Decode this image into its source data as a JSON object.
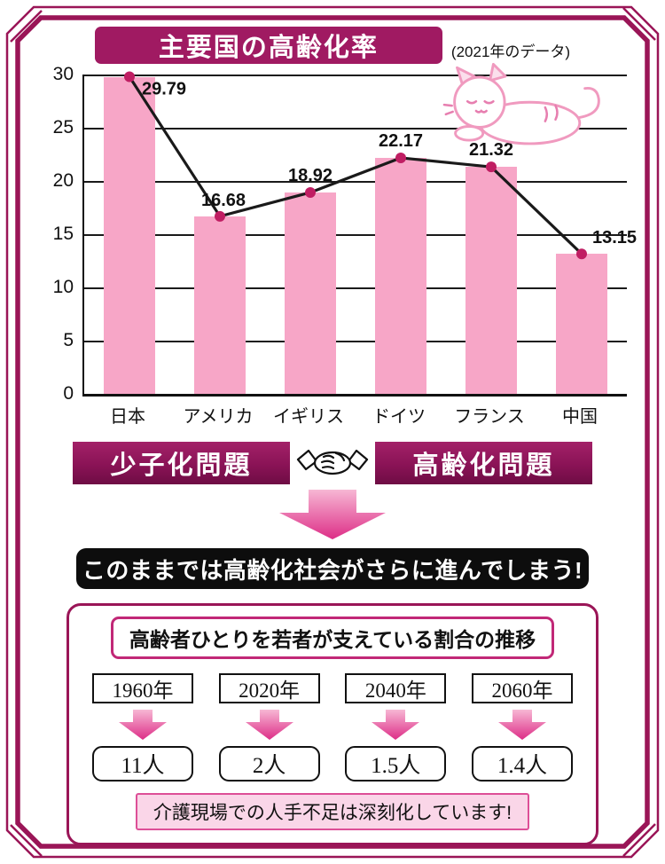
{
  "header": {
    "title": "主要国の高齢化率",
    "note": "(2021年のデータ)"
  },
  "chart_data": {
    "type": "bar",
    "overlay": "line",
    "title": "主要国の高齢化率",
    "subtitle": "(2021年のデータ)",
    "categories": [
      "日本",
      "アメリカ",
      "イギリス",
      "ドイツ",
      "フランス",
      "中国"
    ],
    "values": [
      29.79,
      16.68,
      18.92,
      22.17,
      21.32,
      13.15
    ],
    "ylim": [
      0,
      30
    ],
    "yticks": [
      0,
      5,
      10,
      15,
      20,
      25,
      30
    ],
    "grid": true,
    "bar_color": "#F7A6C7",
    "line_color": "#1A1A1A",
    "dot_color": "#C01E63"
  },
  "problems": {
    "left": "少子化問題",
    "right": "高齢化問題"
  },
  "banner": {
    "text": "このままでは高齢化社会がさらに進んでしまう!"
  },
  "support_panel": {
    "title": "高齢者ひとりを若者が支えている割合の推移",
    "items": [
      {
        "year": "1960年",
        "count": "11人"
      },
      {
        "year": "2020年",
        "count": "2人"
      },
      {
        "year": "2040年",
        "count": "1.5人"
      },
      {
        "year": "2060年",
        "count": "1.4人"
      }
    ],
    "note": "介護現場での人手不足は深刻化しています!"
  },
  "icons": {
    "handshake": "handshake-icon",
    "cat": "cat-illustration",
    "arrow": "down-arrow-icon"
  },
  "colors": {
    "accent": "#9A1557",
    "bar_pink": "#F7A6C7",
    "arrow_gradient_top": "#F7B7D4",
    "arrow_gradient_bottom": "#DD2E87",
    "banner_bg": "#0D0D0D",
    "note_bg": "#FAD6E8",
    "note_border": "#DD4F97"
  }
}
